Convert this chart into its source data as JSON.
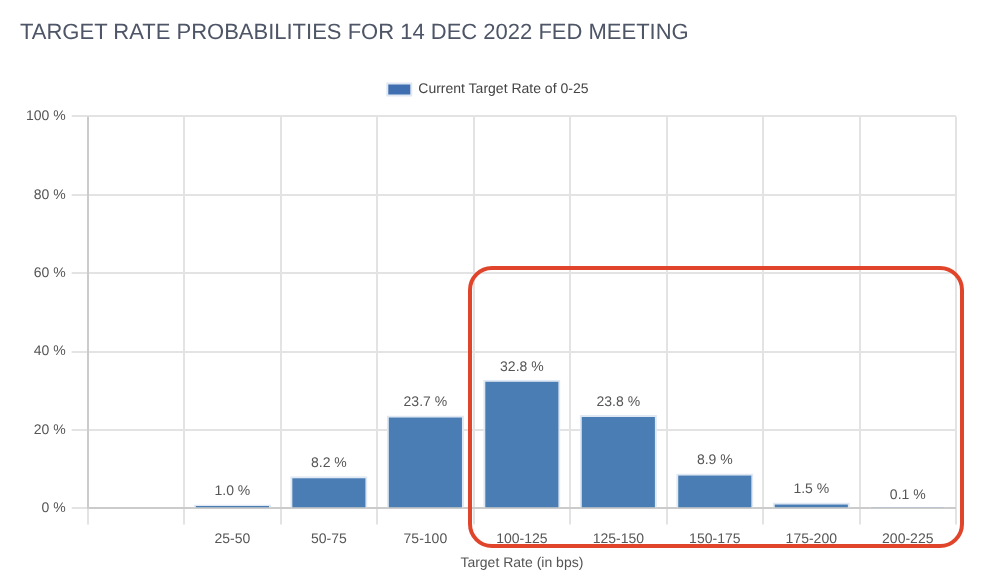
{
  "chart_data": {
    "type": "bar",
    "title": "TARGET RATE PROBABILITIES FOR 14 DEC 2022 FED MEETING",
    "xlabel": "Target Rate (in bps)",
    "categories": [
      null,
      "25-50",
      "50-75",
      "75-100",
      "100-125",
      "125-150",
      "150-175",
      "175-200",
      "200-225"
    ],
    "series": [
      {
        "color": "#4a7db4",
        "values": [
          null,
          1.0,
          8.2,
          23.7,
          32.8,
          23.8,
          8.9,
          1.5,
          0.1
        ],
        "value_labels": [
          null,
          "1.0 %",
          "8.2 %",
          "23.7 %",
          "32.8 %",
          "23.8 %",
          "8.9 %",
          "1.5 %",
          "0.1 %"
        ]
      },
      {
        "name": "Current Target Rate of 0-25",
        "color": "#3f6fb0",
        "values": [
          null,
          null,
          null,
          null,
          null,
          null,
          null,
          null,
          null
        ]
      }
    ],
    "ylim": [
      0,
      100
    ],
    "yticks": [
      {
        "value": 0,
        "label": "0 %"
      },
      {
        "value": 20,
        "label": "20 %"
      },
      {
        "value": 40,
        "label": "40 %"
      },
      {
        "value": 60,
        "label": "60 %"
      },
      {
        "value": 80,
        "label": "80 %"
      },
      {
        "value": 100,
        "label": "100 %"
      }
    ],
    "grid": true,
    "legend": "top"
  }
}
